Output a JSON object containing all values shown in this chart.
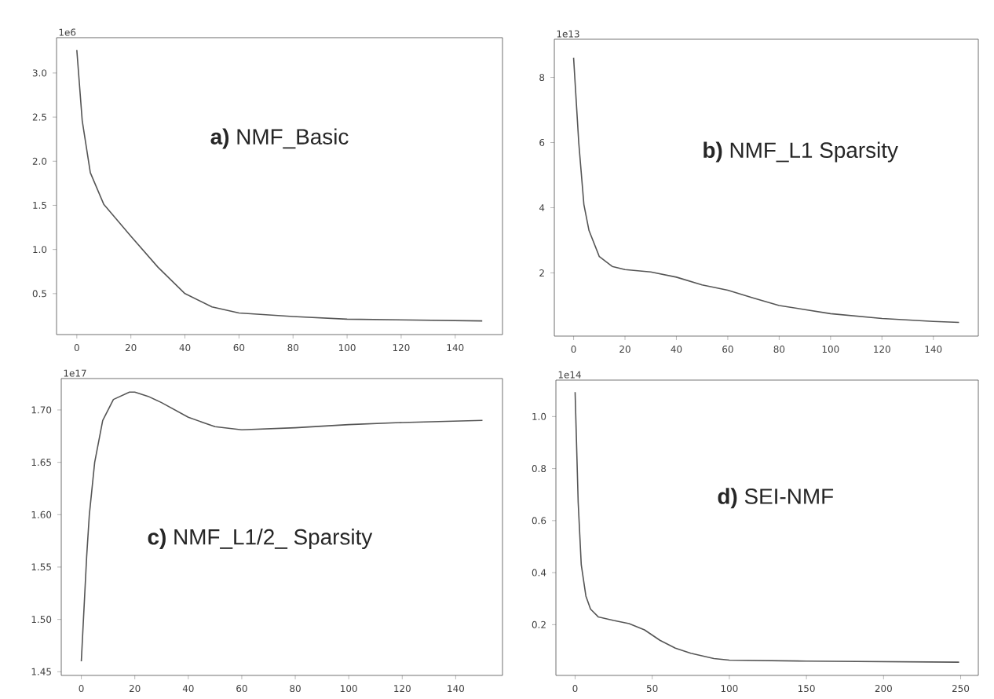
{
  "chart_data": [
    {
      "type": "line",
      "title": "**a)** NMF_Basic",
      "annotations": [
        "1e6"
      ],
      "color": "#555555",
      "x": [
        0,
        2,
        5,
        10,
        20,
        30,
        40,
        50,
        60,
        80,
        100,
        150
      ],
      "values": [
        3.26,
        2.46,
        1.87,
        1.51,
        1.15,
        0.8,
        0.5,
        0.35,
        0.28,
        0.24,
        0.21,
        0.19
      ],
      "xlim": [
        -7.5,
        157.5
      ],
      "ylim": [
        0.036,
        3.4
      ],
      "xticks": [
        0,
        20,
        40,
        60,
        80,
        100,
        120,
        140
      ],
      "yticks": [
        {
          "value": 0.5,
          "label": "0.5"
        },
        {
          "value": 1.0,
          "label": "1.0"
        },
        {
          "value": 1.5,
          "label": "1.5"
        },
        {
          "value": 2.0,
          "label": "2.0"
        },
        {
          "value": 2.5,
          "label": "2.5"
        },
        {
          "value": 3.0,
          "label": "3.0"
        }
      ]
    },
    {
      "type": "line",
      "title": "**b)** NMF_L1 Sparsity",
      "annotations": [
        "1e13"
      ],
      "color": "#555555",
      "x": [
        0,
        2,
        4,
        6,
        10,
        15,
        20,
        30,
        40,
        50,
        60,
        70,
        80,
        100,
        120,
        140,
        150
      ],
      "values": [
        8.6,
        6.0,
        4.1,
        3.3,
        2.5,
        2.2,
        2.1,
        2.03,
        1.87,
        1.63,
        1.47,
        1.23,
        1.0,
        0.75,
        0.6,
        0.51,
        0.48
      ],
      "xlim": [
        -7.5,
        157.5
      ],
      "ylim": [
        0.06,
        9.17
      ],
      "xticks": [
        0,
        20,
        40,
        60,
        80,
        100,
        120,
        140
      ],
      "yticks": [
        2,
        4,
        6,
        8
      ]
    },
    {
      "type": "line",
      "title": "**c)** NMF_L1/2_ Sparsity",
      "annotations": [
        "1e17"
      ],
      "color": "#555555",
      "x": [
        0,
        1,
        2,
        3,
        5,
        8,
        12,
        18,
        20,
        25,
        30,
        40,
        50,
        60,
        80,
        100,
        120,
        150
      ],
      "values": [
        1.46,
        1.51,
        1.56,
        1.6,
        1.65,
        1.69,
        1.71,
        1.717,
        1.717,
        1.713,
        1.707,
        1.693,
        1.684,
        1.681,
        1.683,
        1.686,
        1.688,
        1.69
      ],
      "xlim": [
        -7.5,
        157.5
      ],
      "ylim": [
        1.4465,
        1.73
      ],
      "xticks": [
        0,
        20,
        40,
        60,
        80,
        100,
        120,
        140
      ],
      "yticks": [
        {
          "value": 1.45,
          "label": "1.45"
        },
        {
          "value": 1.5,
          "label": "1.50"
        },
        {
          "value": 1.55,
          "label": "1.55"
        },
        {
          "value": 1.6,
          "label": "1.60"
        },
        {
          "value": 1.65,
          "label": "1.65"
        },
        {
          "value": 1.7,
          "label": "1.70"
        }
      ]
    },
    {
      "type": "line",
      "title": "**d)** SEI-NMF",
      "annotations": [
        "1e14"
      ],
      "color": "#555555",
      "x": [
        0,
        2,
        4,
        7,
        10,
        15,
        25,
        35,
        45,
        55,
        65,
        75,
        90,
        100,
        150,
        249
      ],
      "values": [
        1.094,
        0.67,
        0.43,
        0.31,
        0.26,
        0.23,
        0.216,
        0.204,
        0.18,
        0.14,
        0.11,
        0.09,
        0.07,
        0.064,
        0.06,
        0.056
      ],
      "xlim": [
        -12.45,
        261.45
      ],
      "ylim": [
        0.005,
        1.14
      ],
      "xticks": [
        0,
        50,
        100,
        150,
        200,
        250
      ],
      "yticks": [
        {
          "value": 0.2,
          "label": "0.2"
        },
        {
          "value": 0.4,
          "label": "0.4"
        },
        {
          "value": 0.6,
          "label": "0.6"
        },
        {
          "value": 0.8,
          "label": "0.8"
        },
        {
          "value": 1.0,
          "label": "1.0"
        }
      ]
    }
  ]
}
